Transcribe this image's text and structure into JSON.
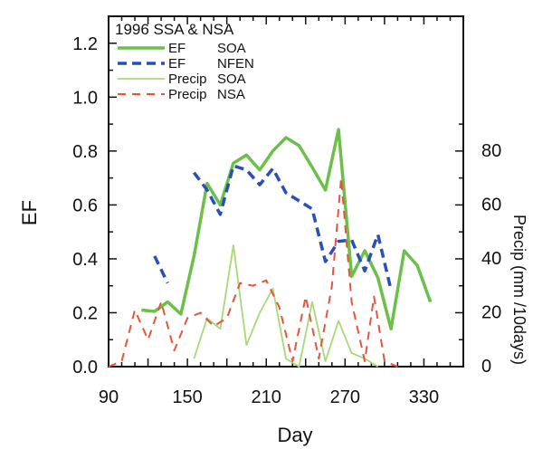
{
  "chart_data": {
    "type": "line",
    "legend_title": "1996 SSA & NSA",
    "legend_placement": "top-left",
    "xlabel": "Day",
    "ylabel": "EF",
    "y2label": "Precip (mm /10days)",
    "xlim": [
      90,
      360
    ],
    "ylim": [
      0,
      1.3
    ],
    "y2lim": [
      0,
      130
    ],
    "x_ticks": [
      90,
      150,
      210,
      270,
      330
    ],
    "y_ticks": [
      "0.0",
      "0.2",
      "0.4",
      "0.6",
      "0.8",
      "1.0",
      "1.2"
    ],
    "y2_ticks": [
      "0",
      "20",
      "40",
      "60",
      "80"
    ],
    "grid": false,
    "series": [
      {
        "name": "EF SOA",
        "legend_label": "EF",
        "legend_site": "SOA",
        "axis": "left",
        "color": "#6cc04a",
        "style": "solid",
        "width": 3.5,
        "segments": [
          [
            [
              115,
              0.21
            ],
            [
              125,
              0.205
            ],
            [
              135,
              0.24
            ],
            [
              145,
              0.195
            ],
            [
              155,
              0.41
            ],
            [
              165,
              0.68
            ],
            [
              175,
              0.6
            ],
            [
              185,
              0.755
            ],
            [
              195,
              0.785
            ],
            [
              205,
              0.73
            ],
            [
              215,
              0.8
            ],
            [
              225,
              0.85
            ],
            [
              235,
              0.82
            ],
            [
              245,
              0.74
            ],
            [
              255,
              0.655
            ],
            [
              265,
              0.88
            ],
            [
              275,
              0.335
            ],
            [
              285,
              0.43
            ],
            [
              295,
              0.33
            ],
            [
              305,
              0.14
            ],
            [
              315,
              0.43
            ],
            [
              325,
              0.375
            ],
            [
              335,
              0.24
            ]
          ]
        ]
      },
      {
        "name": "EF NFEN",
        "legend_label": "EF",
        "legend_site": "NFEN",
        "axis": "left",
        "color": "#2a4fb5",
        "style": "dashed",
        "width": 3.5,
        "segments": [
          [
            [
              125,
              0.41
            ],
            [
              135,
              0.31
            ]
          ],
          [
            [
              155,
              0.72
            ],
            [
              165,
              0.655
            ],
            [
              175,
              0.565
            ],
            [
              185,
              0.745
            ],
            [
              195,
              0.73
            ],
            [
              205,
              0.675
            ],
            [
              215,
              0.735
            ],
            [
              225,
              0.645
            ],
            [
              235,
              0.615
            ],
            [
              245,
              0.585
            ],
            [
              255,
              0.39
            ],
            [
              265,
              0.465
            ],
            [
              275,
              0.47
            ],
            [
              285,
              0.355
            ],
            [
              295,
              0.49
            ],
            [
              305,
              0.285
            ]
          ]
        ]
      },
      {
        "name": "Precip SOA",
        "legend_label": "Precip",
        "legend_site": "SOA",
        "axis": "right",
        "color": "#a8d87a",
        "style": "solid",
        "width": 1.8,
        "segments": [
          [
            [
              155,
              3
            ],
            [
              165,
              18
            ],
            [
              175,
              14
            ],
            [
              185,
              45
            ],
            [
              195,
              8
            ],
            [
              205,
              20
            ],
            [
              215,
              29
            ],
            [
              225,
              3
            ],
            [
              235,
              0
            ],
            [
              245,
              24
            ],
            [
              255,
              2
            ],
            [
              265,
              17
            ],
            [
              275,
              5
            ],
            [
              285,
              3
            ],
            [
              295,
              0
            ]
          ]
        ]
      },
      {
        "name": "Precip NSA",
        "legend_label": "Precip",
        "legend_site": "NSA",
        "axis": "right",
        "color": "#e8543a",
        "style": "dashed",
        "width": 2,
        "segments": [
          [
            [
              90,
              0
            ],
            [
              100,
              2
            ],
            [
              110,
              21
            ],
            [
              120,
              10
            ],
            [
              130,
              24
            ],
            [
              140,
              6
            ],
            [
              150,
              18
            ],
            [
              160,
              20
            ],
            [
              170,
              15
            ],
            [
              180,
              18
            ],
            [
              190,
              31
            ],
            [
              200,
              30
            ],
            [
              210,
              32
            ],
            [
              220,
              22
            ],
            [
              230,
              2
            ],
            [
              240,
              26
            ],
            [
              250,
              3
            ],
            [
              260,
              30
            ],
            [
              267,
              70
            ],
            [
              275,
              24
            ],
            [
              285,
              2
            ],
            [
              292,
              26
            ],
            [
              300,
              2
            ],
            [
              310,
              0
            ]
          ]
        ]
      }
    ]
  }
}
